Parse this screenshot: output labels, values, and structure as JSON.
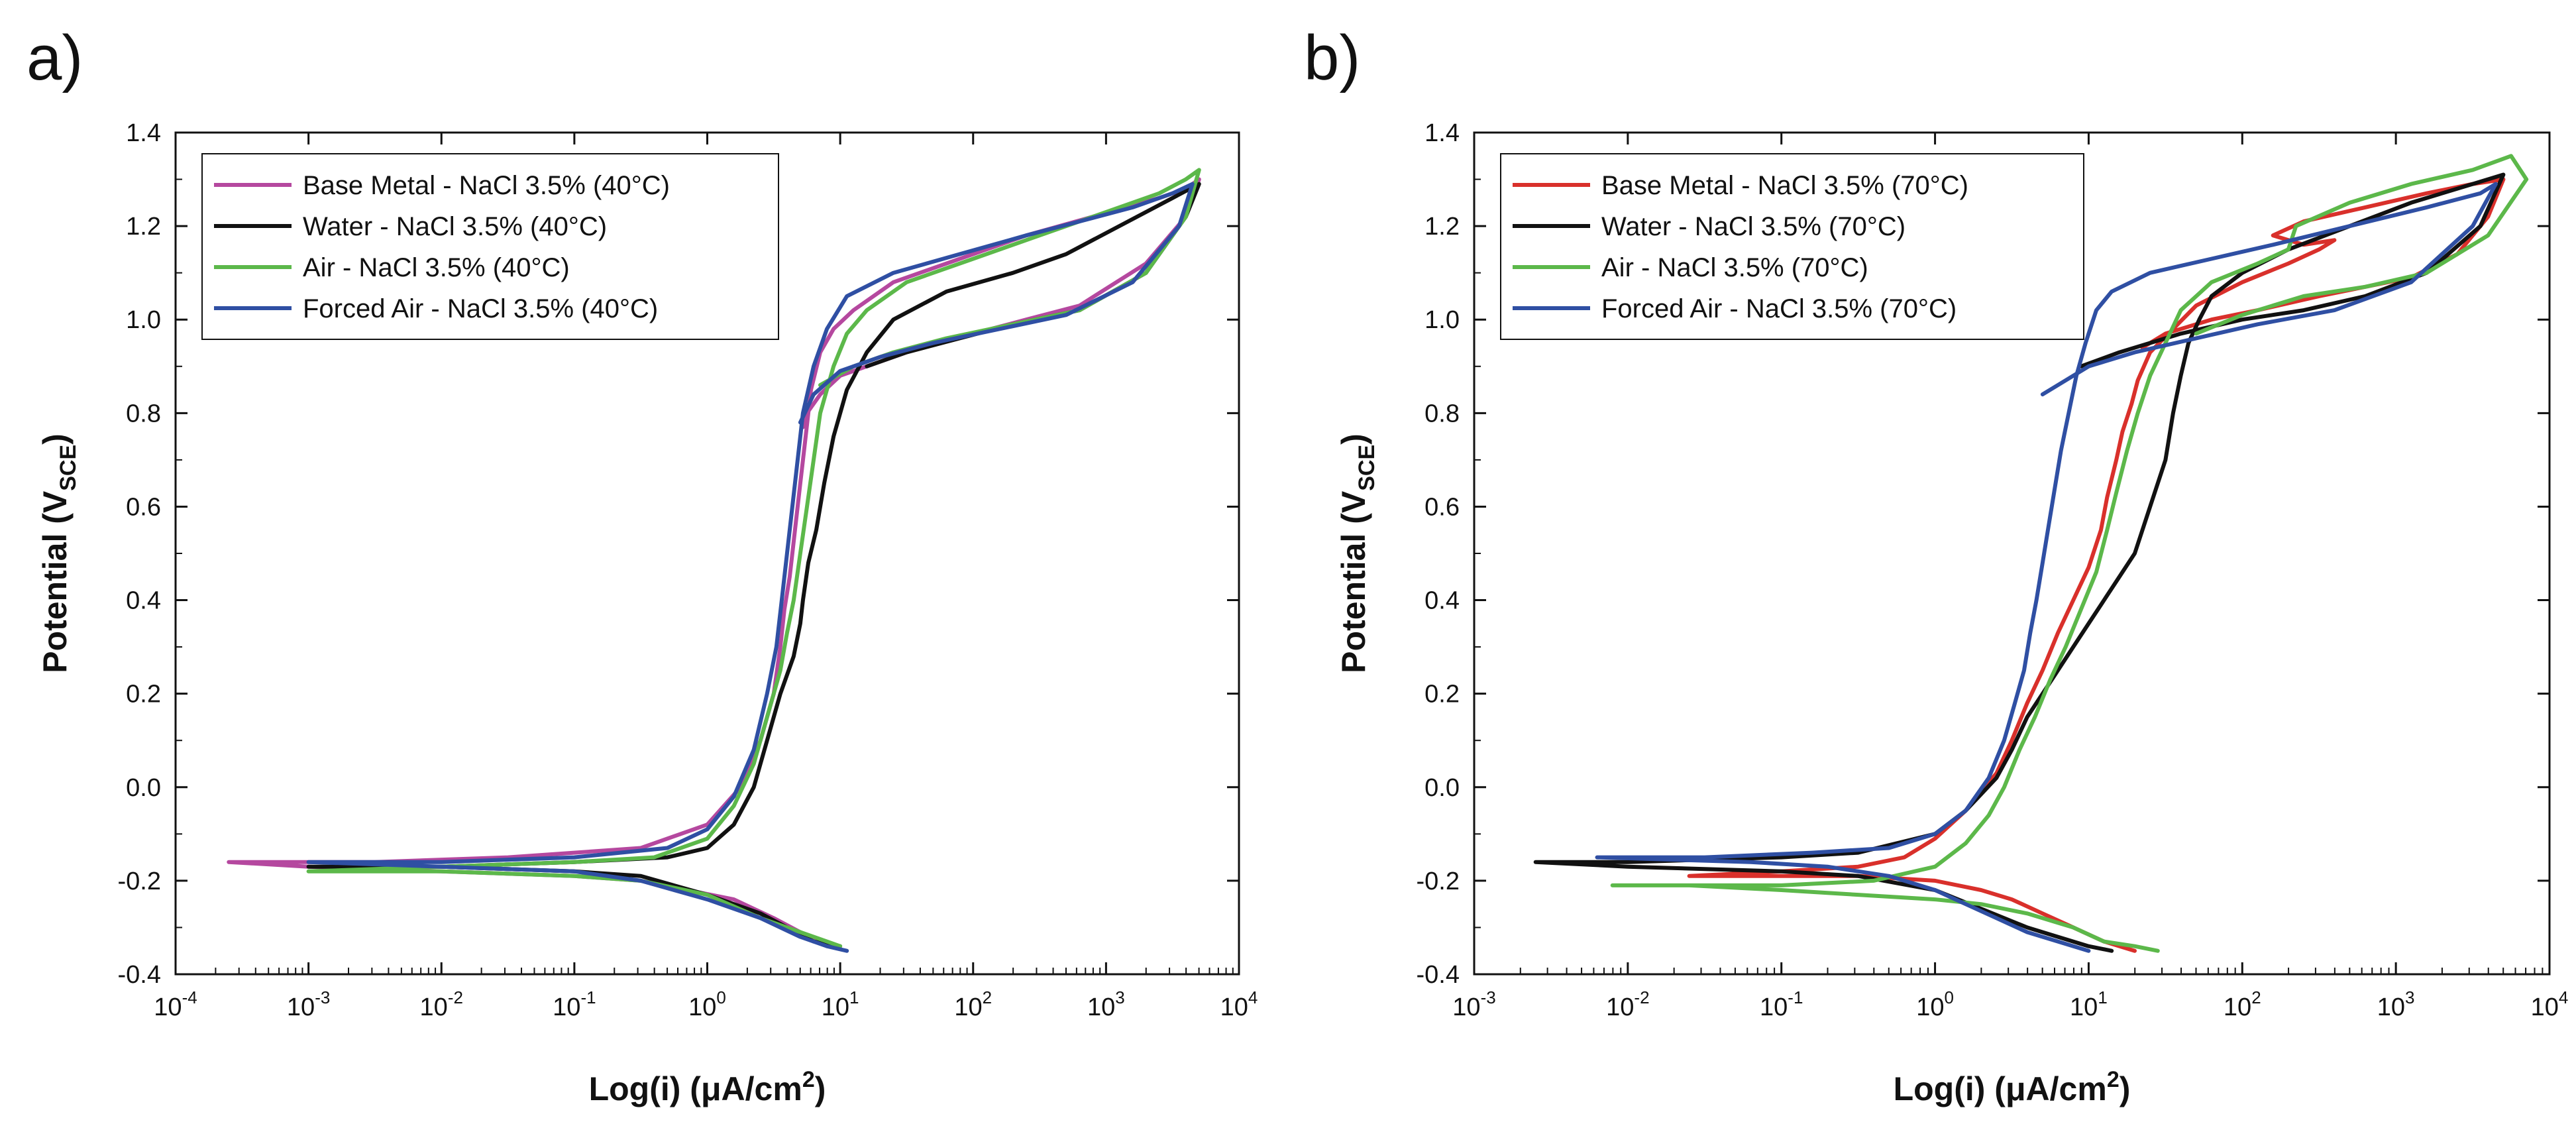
{
  "figure": {
    "panel_labels": [
      "a)",
      "b)"
    ]
  },
  "chart_data": [
    {
      "panel": "a)",
      "type": "line",
      "xlabel": "Log(i) (μA/cm²)",
      "xlabel_parts": {
        "main": "Log(i) (μA/cm",
        "sup": "2",
        "end": ")"
      },
      "ylabel": "Potential (V_SCE)",
      "ylabel_parts": {
        "main": "Potential (V",
        "sub": "SCE",
        "end": ")"
      },
      "xscale": "log",
      "xlim": [
        -4,
        4
      ],
      "ylim": [
        -0.4,
        1.4
      ],
      "xticks": [
        -4,
        -3,
        -2,
        -1,
        0,
        1,
        2,
        3,
        4
      ],
      "xtick_labels": [
        {
          "base": "10",
          "exp": "-4"
        },
        {
          "base": "10",
          "exp": "-3"
        },
        {
          "base": "10",
          "exp": "-2"
        },
        {
          "base": "10",
          "exp": "-1"
        },
        {
          "base": "10",
          "exp": "0"
        },
        {
          "base": "10",
          "exp": "1"
        },
        {
          "base": "10",
          "exp": "2"
        },
        {
          "base": "10",
          "exp": "3"
        },
        {
          "base": "10",
          "exp": "4"
        }
      ],
      "yticks": [
        -0.4,
        -0.2,
        0.0,
        0.2,
        0.4,
        0.6,
        0.8,
        1.0,
        1.2,
        1.4
      ],
      "ytick_labels": [
        "-0.4",
        "-0.2",
        "0.0",
        "0.2",
        "0.4",
        "0.6",
        "0.8",
        "1.0",
        "1.2",
        "1.4"
      ],
      "legend": "top-left",
      "series": [
        {
          "name": "Base Metal - NaCl 3.5% (40°C)",
          "color": "#b5489f",
          "x": [
            0.9,
            0.85,
            0.7,
            0.5,
            0.2,
            -0.5,
            -1.0,
            -2.0,
            -3.0,
            -3.6,
            -2.5,
            -1.5,
            -1.0,
            -0.5,
            0.0,
            0.25,
            0.4,
            0.5,
            0.55,
            0.58,
            0.62,
            0.66,
            0.7,
            0.74,
            0.78,
            0.85,
            0.95,
            1.1,
            1.4,
            1.9,
            2.4,
            2.9,
            3.4,
            3.6,
            3.7,
            3.6,
            3.3,
            2.8,
            2.4,
            2.0,
            1.6,
            1.3,
            1.0,
            0.85,
            0.75,
            0.72
          ],
          "y": [
            -0.34,
            -0.33,
            -0.31,
            -0.28,
            -0.24,
            -0.2,
            -0.19,
            -0.18,
            -0.17,
            -0.16,
            -0.16,
            -0.15,
            -0.14,
            -0.13,
            -0.08,
            0.0,
            0.1,
            0.2,
            0.3,
            0.38,
            0.45,
            0.55,
            0.65,
            0.75,
            0.85,
            0.93,
            0.98,
            1.02,
            1.08,
            1.13,
            1.18,
            1.22,
            1.26,
            1.28,
            1.3,
            1.22,
            1.12,
            1.03,
            1.0,
            0.97,
            0.94,
            0.91,
            0.88,
            0.84,
            0.8,
            0.77
          ]
        },
        {
          "name": "Water - NaCl 3.5% (40°C)",
          "color": "#111111",
          "x": [
            1.0,
            0.8,
            0.6,
            0.4,
            0.0,
            -0.5,
            -1.0,
            -2.0,
            -3.0,
            -2.0,
            -1.0,
            -0.3,
            0.0,
            0.2,
            0.35,
            0.45,
            0.55,
            0.65,
            0.7,
            0.72,
            0.76,
            0.82,
            0.88,
            0.95,
            1.05,
            1.2,
            1.4,
            1.8,
            2.3,
            2.7,
            3.1,
            3.5,
            3.7,
            3.6,
            3.3,
            2.8,
            2.3,
            1.9,
            1.5,
            1.2
          ],
          "y": [
            -0.34,
            -0.33,
            -0.3,
            -0.27,
            -0.23,
            -0.19,
            -0.18,
            -0.17,
            -0.17,
            -0.17,
            -0.16,
            -0.15,
            -0.13,
            -0.08,
            0.0,
            0.1,
            0.2,
            0.28,
            0.35,
            0.4,
            0.48,
            0.55,
            0.65,
            0.75,
            0.85,
            0.93,
            1.0,
            1.06,
            1.1,
            1.14,
            1.2,
            1.26,
            1.29,
            1.22,
            1.1,
            1.02,
            0.99,
            0.96,
            0.93,
            0.9
          ]
        },
        {
          "name": "Air - NaCl 3.5% (40°C)",
          "color": "#5cb84a",
          "x": [
            1.0,
            0.9,
            0.7,
            0.4,
            0.0,
            -0.5,
            -1.0,
            -2.0,
            -3.0,
            -2.0,
            -1.0,
            -0.4,
            0.0,
            0.2,
            0.35,
            0.45,
            0.55,
            0.6,
            0.65,
            0.7,
            0.75,
            0.8,
            0.85,
            0.95,
            1.05,
            1.2,
            1.5,
            2.0,
            2.5,
            3.0,
            3.4,
            3.6,
            3.7,
            3.6,
            3.3,
            2.8,
            2.3,
            1.8,
            1.4,
            1.1,
            0.85
          ],
          "y": [
            -0.34,
            -0.33,
            -0.31,
            -0.28,
            -0.23,
            -0.2,
            -0.19,
            -0.18,
            -0.18,
            -0.17,
            -0.16,
            -0.15,
            -0.11,
            -0.04,
            0.05,
            0.15,
            0.25,
            0.33,
            0.4,
            0.5,
            0.6,
            0.7,
            0.8,
            0.9,
            0.97,
            1.02,
            1.08,
            1.13,
            1.18,
            1.23,
            1.27,
            1.3,
            1.32,
            1.22,
            1.1,
            1.02,
            0.99,
            0.96,
            0.93,
            0.9,
            0.86
          ]
        },
        {
          "name": "Forced Air - NaCl 3.5% (40°C)",
          "color": "#2f4fa3",
          "x": [
            1.05,
            0.9,
            0.7,
            0.4,
            0.0,
            -0.5,
            -1.0,
            -2.0,
            -3.0,
            -2.0,
            -1.0,
            -0.3,
            0.0,
            0.2,
            0.35,
            0.45,
            0.52,
            0.56,
            0.6,
            0.64,
            0.68,
            0.72,
            0.8,
            0.9,
            1.05,
            1.4,
            1.9,
            2.4,
            2.8,
            3.2,
            3.5,
            3.65,
            3.55,
            3.2,
            2.7,
            2.2,
            1.7,
            1.3,
            1.0,
            0.8,
            0.7
          ],
          "y": [
            -0.35,
            -0.34,
            -0.32,
            -0.28,
            -0.24,
            -0.2,
            -0.18,
            -0.17,
            -0.16,
            -0.16,
            -0.15,
            -0.13,
            -0.09,
            -0.02,
            0.08,
            0.2,
            0.3,
            0.4,
            0.5,
            0.6,
            0.7,
            0.8,
            0.9,
            0.98,
            1.05,
            1.1,
            1.14,
            1.18,
            1.21,
            1.24,
            1.27,
            1.29,
            1.2,
            1.08,
            1.01,
            0.98,
            0.95,
            0.92,
            0.89,
            0.84,
            0.78
          ]
        }
      ]
    },
    {
      "panel": "b)",
      "type": "line",
      "xlabel": "Log(i) (μA/cm²)",
      "xlabel_parts": {
        "main": "Log(i) (μA/cm",
        "sup": "2",
        "end": ")"
      },
      "ylabel": "Potential (V_SCE)",
      "ylabel_parts": {
        "main": "Potential (V",
        "sub": "SCE",
        "end": ")"
      },
      "xscale": "log",
      "xlim": [
        -3,
        4
      ],
      "ylim": [
        -0.4,
        1.4
      ],
      "xticks": [
        -3,
        -2,
        -1,
        0,
        1,
        2,
        3,
        4
      ],
      "xtick_labels": [
        {
          "base": "10",
          "exp": "-3"
        },
        {
          "base": "10",
          "exp": "-2"
        },
        {
          "base": "10",
          "exp": "-1"
        },
        {
          "base": "10",
          "exp": "0"
        },
        {
          "base": "10",
          "exp": "1"
        },
        {
          "base": "10",
          "exp": "2"
        },
        {
          "base": "10",
          "exp": "3"
        },
        {
          "base": "10",
          "exp": "4"
        }
      ],
      "yticks": [
        -0.4,
        -0.2,
        0.0,
        0.2,
        0.4,
        0.6,
        0.8,
        1.0,
        1.2,
        1.4
      ],
      "ytick_labels": [
        "-0.4",
        "-0.2",
        "0.0",
        "0.2",
        "0.4",
        "0.6",
        "0.8",
        "1.0",
        "1.2",
        "1.4"
      ],
      "legend": "top-left",
      "series": [
        {
          "name": "Base Metal - NaCl 3.5% (70°C)",
          "color": "#d9302b",
          "x": [
            1.3,
            1.1,
            0.9,
            0.7,
            0.5,
            0.3,
            0.0,
            -0.5,
            -1.0,
            -1.6,
            -1.0,
            -0.5,
            -0.2,
            0.0,
            0.2,
            0.4,
            0.5,
            0.6,
            0.7,
            0.8,
            0.9,
            1.0,
            1.08,
            1.12,
            1.18,
            1.22,
            1.28,
            1.32,
            1.4,
            1.55,
            1.7,
            2.0,
            2.3,
            2.5,
            2.6,
            2.4,
            2.2,
            2.4,
            2.8,
            3.2,
            3.5,
            3.7,
            3.6,
            3.4,
            3.1,
            2.8,
            2.5,
            2.1,
            1.8,
            1.5,
            1.35
          ],
          "y": [
            -0.35,
            -0.33,
            -0.3,
            -0.27,
            -0.24,
            -0.22,
            -0.2,
            -0.19,
            -0.19,
            -0.19,
            -0.18,
            -0.17,
            -0.15,
            -0.11,
            -0.05,
            0.03,
            0.1,
            0.18,
            0.25,
            0.33,
            0.4,
            0.47,
            0.55,
            0.62,
            0.7,
            0.76,
            0.82,
            0.87,
            0.93,
            0.98,
            1.03,
            1.08,
            1.12,
            1.15,
            1.17,
            1.16,
            1.18,
            1.21,
            1.24,
            1.27,
            1.29,
            1.3,
            1.22,
            1.14,
            1.09,
            1.07,
            1.05,
            1.02,
            1.0,
            0.97,
            0.94
          ]
        },
        {
          "name": "Water - NaCl 3.5% (70°C)",
          "color": "#111111",
          "x": [
            1.15,
            1.0,
            0.8,
            0.6,
            0.3,
            0.0,
            -0.5,
            -1.0,
            -2.0,
            -2.6,
            -2.0,
            -1.0,
            -0.5,
            0.0,
            0.2,
            0.4,
            0.5,
            0.6,
            0.7,
            0.8,
            0.9,
            1.0,
            1.1,
            1.2,
            1.3,
            1.4,
            1.5,
            1.55,
            1.6,
            1.65,
            1.72,
            1.8,
            2.0,
            2.3,
            2.7,
            3.1,
            3.5,
            3.7,
            3.55,
            3.2,
            2.8,
            2.4,
            2.0,
            1.6,
            1.2,
            0.95
          ],
          "y": [
            -0.35,
            -0.34,
            -0.32,
            -0.3,
            -0.26,
            -0.22,
            -0.19,
            -0.18,
            -0.17,
            -0.16,
            -0.16,
            -0.15,
            -0.14,
            -0.1,
            -0.05,
            0.02,
            0.08,
            0.15,
            0.2,
            0.25,
            0.3,
            0.35,
            0.4,
            0.45,
            0.5,
            0.6,
            0.7,
            0.8,
            0.88,
            0.95,
            1.0,
            1.05,
            1.1,
            1.15,
            1.2,
            1.25,
            1.29,
            1.31,
            1.2,
            1.1,
            1.05,
            1.02,
            1.0,
            0.97,
            0.93,
            0.9
          ]
        },
        {
          "name": "Air - NaCl 3.5% (70°C)",
          "color": "#5cb84a",
          "x": [
            1.45,
            1.3,
            1.1,
            0.9,
            0.6,
            0.3,
            0.0,
            -0.5,
            -1.0,
            -1.6,
            -2.1,
            -1.5,
            -1.0,
            -0.4,
            0.0,
            0.2,
            0.35,
            0.45,
            0.55,
            0.65,
            0.75,
            0.85,
            0.95,
            1.05,
            1.12,
            1.18,
            1.25,
            1.32,
            1.4,
            1.5,
            1.6,
            1.8,
            2.1,
            2.3,
            2.35,
            2.7,
            3.1,
            3.5,
            3.75,
            3.85,
            3.6,
            3.2,
            2.8,
            2.4,
            2.0,
            1.7
          ],
          "y": [
            -0.35,
            -0.34,
            -0.33,
            -0.3,
            -0.27,
            -0.25,
            -0.24,
            -0.23,
            -0.22,
            -0.21,
            -0.21,
            -0.21,
            -0.21,
            -0.2,
            -0.17,
            -0.12,
            -0.06,
            0.0,
            0.08,
            0.15,
            0.23,
            0.3,
            0.38,
            0.46,
            0.55,
            0.63,
            0.72,
            0.8,
            0.88,
            0.95,
            1.02,
            1.08,
            1.12,
            1.15,
            1.2,
            1.25,
            1.29,
            1.32,
            1.35,
            1.3,
            1.18,
            1.1,
            1.07,
            1.05,
            1.01,
            0.97
          ]
        },
        {
          "name": "Forced Air - NaCl 3.5% (70°C)",
          "color": "#2f4fa3",
          "x": [
            1.0,
            0.8,
            0.6,
            0.4,
            0.2,
            0.0,
            -0.3,
            -0.7,
            -1.2,
            -2.2,
            -1.5,
            -0.8,
            -0.3,
            0.0,
            0.2,
            0.35,
            0.45,
            0.52,
            0.58,
            0.62,
            0.66,
            0.7,
            0.74,
            0.78,
            0.82,
            0.87,
            0.92,
            0.98,
            1.05,
            1.15,
            1.4,
            1.8,
            2.2,
            2.7,
            3.2,
            3.55,
            3.65,
            3.5,
            3.1,
            2.6,
            2.1,
            1.7,
            1.3,
            1.0,
            0.85,
            0.7
          ],
          "y": [
            -0.35,
            -0.33,
            -0.31,
            -0.28,
            -0.25,
            -0.22,
            -0.19,
            -0.17,
            -0.16,
            -0.15,
            -0.15,
            -0.14,
            -0.13,
            -0.1,
            -0.05,
            0.02,
            0.1,
            0.18,
            0.25,
            0.33,
            0.4,
            0.48,
            0.56,
            0.64,
            0.72,
            0.8,
            0.88,
            0.95,
            1.02,
            1.06,
            1.1,
            1.13,
            1.16,
            1.2,
            1.24,
            1.27,
            1.29,
            1.2,
            1.08,
            1.02,
            0.99,
            0.96,
            0.93,
            0.9,
            0.87,
            0.84
          ]
        }
      ]
    }
  ]
}
